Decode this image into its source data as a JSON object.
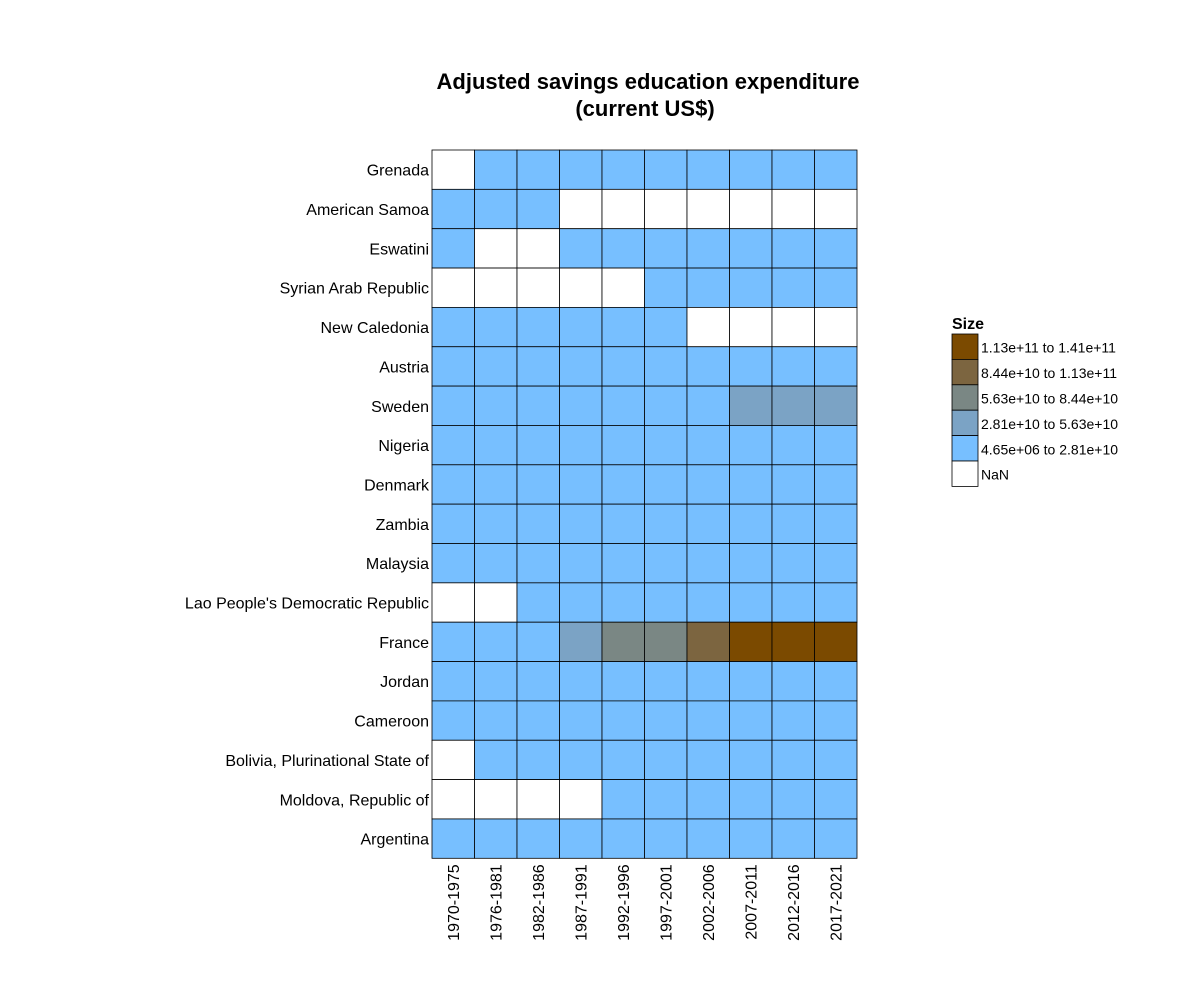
{
  "chart_data": {
    "type": "heatmap",
    "title": "Adjusted savings education expenditure",
    "subtitle": "(current US$)",
    "legend_title": "Size",
    "legend_placement": "right",
    "grid": false,
    "columns": [
      "1970-1975",
      "1976-1981",
      "1982-1986",
      "1987-1991",
      "1992-1996",
      "1997-2001",
      "2002-2006",
      "2007-2011",
      "2012-2016",
      "2017-2021"
    ],
    "rows": [
      "Grenada",
      "American Samoa",
      "Eswatini",
      "Syrian Arab Republic",
      "New Caledonia",
      "Austria",
      "Sweden",
      "Nigeria",
      "Denmark",
      "Zambia",
      "Malaysia",
      "Lao People's Democratic Republic",
      "France",
      "Jordan",
      "Cameroon",
      "Bolivia, Plurinational State of",
      "Moldova, Republic of",
      "Argentina"
    ],
    "bins": [
      {
        "label": "1.13e+11 to 1.41e+11",
        "color": "#7b4a00"
      },
      {
        "label": "8.44e+10 to 1.13e+11",
        "color": "#7c6540"
      },
      {
        "label": "5.63e+10 to 8.44e+10",
        "color": "#7a8784"
      },
      {
        "label": "2.81e+10 to 5.63e+10",
        "color": "#7ba3c5"
      },
      {
        "label": "4.65e+06 to 2.81e+10",
        "color": "#77bfff"
      },
      {
        "label": "NaN",
        "color": "#ffffff"
      }
    ],
    "bin_index_note_mapping": "cells use bin index: 0..4 per bins order, 5 = NaN",
    "cells": [
      [
        5,
        4,
        4,
        4,
        4,
        4,
        4,
        4,
        4,
        4
      ],
      [
        4,
        4,
        4,
        5,
        5,
        5,
        5,
        5,
        5,
        5
      ],
      [
        4,
        5,
        5,
        4,
        4,
        4,
        4,
        4,
        4,
        4
      ],
      [
        5,
        5,
        5,
        5,
        5,
        4,
        4,
        4,
        4,
        4
      ],
      [
        4,
        4,
        4,
        4,
        4,
        4,
        5,
        5,
        5,
        5
      ],
      [
        4,
        4,
        4,
        4,
        4,
        4,
        4,
        4,
        4,
        4
      ],
      [
        4,
        4,
        4,
        4,
        4,
        4,
        4,
        3,
        3,
        3
      ],
      [
        4,
        4,
        4,
        4,
        4,
        4,
        4,
        4,
        4,
        4
      ],
      [
        4,
        4,
        4,
        4,
        4,
        4,
        4,
        4,
        4,
        4
      ],
      [
        4,
        4,
        4,
        4,
        4,
        4,
        4,
        4,
        4,
        4
      ],
      [
        4,
        4,
        4,
        4,
        4,
        4,
        4,
        4,
        4,
        4
      ],
      [
        5,
        5,
        4,
        4,
        4,
        4,
        4,
        4,
        4,
        4
      ],
      [
        4,
        4,
        4,
        3,
        2,
        2,
        1,
        0,
        0,
        0
      ],
      [
        4,
        4,
        4,
        4,
        4,
        4,
        4,
        4,
        4,
        4
      ],
      [
        4,
        4,
        4,
        4,
        4,
        4,
        4,
        4,
        4,
        4
      ],
      [
        5,
        4,
        4,
        4,
        4,
        4,
        4,
        4,
        4,
        4
      ],
      [
        5,
        5,
        5,
        5,
        4,
        4,
        4,
        4,
        4,
        4
      ],
      [
        4,
        4,
        4,
        4,
        4,
        4,
        4,
        4,
        4,
        4
      ]
    ]
  }
}
